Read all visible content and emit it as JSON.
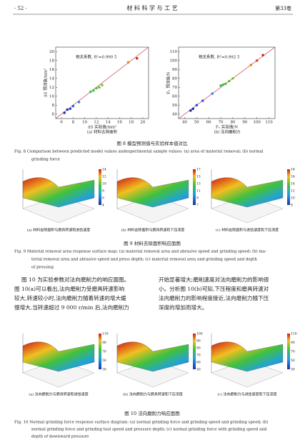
{
  "header": {
    "page": "· 52 ·",
    "journal": "材 料 科 学 与 工 艺",
    "volume": "第33卷"
  },
  "chart_data": [
    {
      "type": "scatter",
      "xlabel": "ΔS 实验值/mm²",
      "ylabel": "ΔS 预测值/mm²",
      "annotation": "相关系数, R²=0.990 5",
      "diagonal": true,
      "xlim": [
        5,
        21
      ],
      "ylim": [
        5,
        21
      ],
      "xticks": [
        6,
        8,
        10,
        12,
        14,
        16,
        18,
        20
      ],
      "yticks": [
        6,
        8,
        10,
        12,
        14,
        16,
        18,
        20
      ],
      "x": [
        6.5,
        7,
        7.5,
        8,
        9,
        11,
        11.5,
        12,
        12.5,
        13,
        17.5,
        19
      ],
      "values": [
        6.3,
        7,
        7.2,
        7.8,
        8.7,
        11,
        11.3,
        11.8,
        12,
        12.5,
        17.6,
        18.5
      ],
      "colors": [
        "#1a2fb0",
        "#1a2fb0",
        "#2050d0",
        "#2060e0",
        "#2f80f0",
        "#30c060",
        "#40c040",
        "#50c040",
        "#60c030",
        "#80c020",
        "#e08020",
        "#d02020"
      ]
    },
    {
      "type": "scatter",
      "xlabel": "Fₙ 实验值/N",
      "ylabel": "Fₙ 预测值/N",
      "annotation": "相关系数, R²=0.992 5",
      "diagonal": true,
      "xlim": [
        35,
        115
      ],
      "ylim": [
        35,
        115
      ],
      "xticks": [
        40,
        50,
        60,
        70,
        80,
        90,
        100,
        110
      ],
      "yticks": [
        40,
        50,
        60,
        70,
        80,
        90,
        100,
        110
      ],
      "x": [
        45,
        47,
        50,
        55,
        63,
        70,
        72,
        74,
        77,
        80,
        95,
        100,
        105
      ],
      "values": [
        44,
        46,
        50,
        55,
        63,
        72,
        73,
        74,
        77,
        80,
        95,
        100,
        106
      ],
      "colors": [
        "#1a2fb0",
        "#1a2fb0",
        "#2050d0",
        "#2060e0",
        "#2f80f0",
        "#30c060",
        "#40c040",
        "#50c040",
        "#60c030",
        "#80c020",
        "#e08020",
        "#e04020",
        "#d02020"
      ]
    }
  ],
  "figure8": {
    "sub": [
      "(a) 材料去除面积",
      "(b) 法向磨削力"
    ],
    "caption": "图 8   模型预测值与实验样本值对比",
    "caption_en": [
      "Fig. 8   Comparison between predicted model values andexperimental sample values: (a) area of material removal; (b) normal",
      "grinding force"
    ]
  },
  "figure9": {
    "colorbars": [
      [
        4,
        6,
        8,
        10,
        12,
        14
      ],
      [
        7,
        9,
        11,
        13,
        15,
        17
      ],
      [
        8,
        10,
        12,
        14,
        16,
        18
      ]
    ],
    "sub": [
      "(a) 材料去除面积与磨具转速和进给速度",
      "(b) 材料去除面积与磨具转速和下压深度",
      "(c) 材料去除面积与进给速度和下压深度"
    ],
    "caption": "图 9   材料去除面积响应面图",
    "caption_en": [
      "Fig. 9   Material removal area response surface map: (a) material removal area and abrasive speed and grinding speed; (b) ma-",
      "terial removal area and abrasive speed and press depth; (c) material removal area and grinding speed and depth",
      "of pressing"
    ]
  },
  "body": {
    "left": [
      "图 10 为实验参数对法向磨削力的响应面图。",
      "图 10(a)可以看出,法向磨削力受磨具转速影响",
      "较大,转速较小时,法向磨削力随着转速的增大缓",
      "慢增大,当转速超过 9 000 r/min 后,法向磨削力"
    ],
    "right": [
      "开始显著增大;磨削速度对法向磨削力的影响很",
      "小。分析图 10(b)可知,下压程度和磨具转速对",
      "法向磨削力的影响程度接近,法向磨削力随下压",
      "深度的增加而增大。"
    ]
  },
  "figure10": {
    "colorbars": [
      [
        30,
        50,
        70,
        90,
        110
      ],
      [
        50,
        60,
        70,
        80,
        90,
        100
      ],
      [
        30,
        50,
        70,
        90,
        110
      ]
    ],
    "sub": [
      "(a) 法向磨削力与磨具转速和进给速度",
      "(b) 法向磨削力与磨具转速和下压深度",
      "(c) 法向磨削力与进给速度和下压深度"
    ],
    "caption": "图 10   法向磨削力响应面图",
    "caption_en": [
      "Fig. 10   Normal grinding force response surface diagram: (a) normal grinding force and grinding speed and grinding speed; (b)",
      "normal grinding force and grinding tool speed and pressure depth; (c) normal grinding force with grinding speed and",
      "depth of downward pressure"
    ]
  }
}
